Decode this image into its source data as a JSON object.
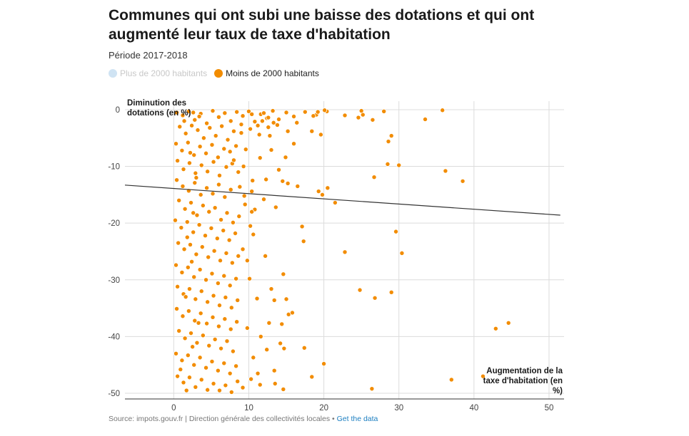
{
  "title": "Communes qui ont subi une baisse des dotations et qui ont augmenté leur taux de taxe d'habitation",
  "subtitle": "Période 2017-2018",
  "legend": [
    {
      "label": "Plus de 2000 habitants",
      "color": "#cfe3f3",
      "active": false
    },
    {
      "label": "Moins de 2000 habitants",
      "color": "#f28c00",
      "active": true
    }
  ],
  "source": {
    "text": "Source: impots.gouv.fr | Direction générale des collectivités locales • ",
    "link_label": "Get the data"
  },
  "colors": {
    "point": "#f28c00",
    "point_stroke": "#ffffff",
    "trend": "#333333",
    "grid": "#dcdcdc"
  },
  "chart_data": {
    "type": "scatter",
    "ylabel": "Diminution des dotations (en %)",
    "xlabel": "Augmentation de la taxe d'habitation (en %)",
    "xlim": [
      -6.5,
      52
    ],
    "ylim": [
      -51,
      1.5
    ],
    "xticks": [
      0,
      10,
      20,
      30,
      40,
      50
    ],
    "yticks": [
      0,
      -10,
      -20,
      -30,
      -40,
      -50
    ],
    "grid": true,
    "legend_position": "top-left",
    "trendline": [
      [
        -6.5,
        -13.3
      ],
      [
        51.5,
        -18.6
      ]
    ],
    "series": [
      {
        "name": "Moins de 2000 habitants",
        "points": [
          [
            0.4,
            -0.5
          ],
          [
            1.2,
            -1.0
          ],
          [
            2.0,
            -0.3
          ],
          [
            2.8,
            -1.8
          ],
          [
            3.6,
            -0.7
          ],
          [
            4.4,
            -2.4
          ],
          [
            5.2,
            -0.2
          ],
          [
            6.0,
            -1.3
          ],
          [
            6.8,
            -0.6
          ],
          [
            7.6,
            -2.0
          ],
          [
            8.4,
            -0.4
          ],
          [
            9.2,
            -1.1
          ],
          [
            10.0,
            -0.3
          ],
          [
            10.8,
            -2.1
          ],
          [
            11.6,
            -0.8
          ],
          [
            12.4,
            -1.5
          ],
          [
            13.2,
            -0.2
          ],
          [
            14.0,
            -1.7
          ],
          [
            15.0,
            -0.5
          ],
          [
            16.0,
            -1.2
          ],
          [
            17.5,
            -0.4
          ],
          [
            19.0,
            -0.9
          ],
          [
            20.4,
            -0.3
          ],
          [
            0.8,
            -3.0
          ],
          [
            1.6,
            -4.2
          ],
          [
            2.4,
            -2.8
          ],
          [
            3.2,
            -3.6
          ],
          [
            4.0,
            -5.0
          ],
          [
            4.8,
            -3.2
          ],
          [
            5.6,
            -4.6
          ],
          [
            6.4,
            -2.9
          ],
          [
            7.2,
            -5.3
          ],
          [
            8.0,
            -3.8
          ],
          [
            9.0,
            -4.1
          ],
          [
            10.2,
            -3.4
          ],
          [
            11.4,
            -4.4
          ],
          [
            12.6,
            -3.1
          ],
          [
            13.8,
            -2.7
          ],
          [
            15.2,
            -3.8
          ],
          [
            16.4,
            -2.3
          ],
          [
            0.3,
            -6.0
          ],
          [
            1.1,
            -7.2
          ],
          [
            1.9,
            -5.8
          ],
          [
            2.7,
            -8.0
          ],
          [
            3.5,
            -6.5
          ],
          [
            4.3,
            -7.7
          ],
          [
            5.1,
            -6.2
          ],
          [
            5.9,
            -8.4
          ],
          [
            6.7,
            -6.9
          ],
          [
            7.5,
            -7.4
          ],
          [
            8.3,
            -6.4
          ],
          [
            9.6,
            -7.0
          ],
          [
            11.5,
            -8.5
          ],
          [
            13.0,
            -7.1
          ],
          [
            0.5,
            -9.0
          ],
          [
            1.3,
            -10.5
          ],
          [
            2.1,
            -9.4
          ],
          [
            2.9,
            -11.2
          ],
          [
            3.7,
            -9.8
          ],
          [
            4.5,
            -10.9
          ],
          [
            5.3,
            -9.2
          ],
          [
            6.1,
            -11.6
          ],
          [
            7.0,
            -10.1
          ],
          [
            7.8,
            -9.5
          ],
          [
            8.6,
            -11.0
          ],
          [
            10.5,
            -12.5
          ],
          [
            12.3,
            -12.3
          ],
          [
            14.5,
            -12.6
          ],
          [
            15.2,
            -13.0
          ],
          [
            0.4,
            -12.4
          ],
          [
            1.2,
            -13.5
          ],
          [
            2.0,
            -14.3
          ],
          [
            2.8,
            -12.9
          ],
          [
            3.6,
            -15.0
          ],
          [
            4.4,
            -13.8
          ],
          [
            5.2,
            -14.8
          ],
          [
            6.0,
            -13.2
          ],
          [
            6.8,
            -15.4
          ],
          [
            7.6,
            -14.1
          ],
          [
            8.8,
            -13.6
          ],
          [
            10.4,
            -14.4
          ],
          [
            12.0,
            -15.8
          ],
          [
            13.6,
            -17.2
          ],
          [
            0.7,
            -16.0
          ],
          [
            1.5,
            -17.5
          ],
          [
            2.3,
            -16.4
          ],
          [
            3.1,
            -18.6
          ],
          [
            3.9,
            -16.9
          ],
          [
            4.7,
            -18.0
          ],
          [
            5.5,
            -17.3
          ],
          [
            6.3,
            -19.4
          ],
          [
            7.1,
            -18.2
          ],
          [
            7.9,
            -19.9
          ],
          [
            8.7,
            -18.8
          ],
          [
            9.5,
            -16.7
          ],
          [
            10.8,
            -17.6
          ],
          [
            0.2,
            -19.5
          ],
          [
            1.0,
            -20.8
          ],
          [
            1.8,
            -19.8
          ],
          [
            2.6,
            -21.6
          ],
          [
            3.4,
            -20.3
          ],
          [
            4.2,
            -22.2
          ],
          [
            5.0,
            -20.9
          ],
          [
            5.8,
            -22.7
          ],
          [
            6.6,
            -21.3
          ],
          [
            7.4,
            -23.0
          ],
          [
            8.2,
            -21.8
          ],
          [
            10.2,
            -20.5
          ],
          [
            10.6,
            -22.0
          ],
          [
            0.6,
            -23.5
          ],
          [
            1.4,
            -24.6
          ],
          [
            2.2,
            -23.8
          ],
          [
            3.0,
            -25.5
          ],
          [
            3.8,
            -24.2
          ],
          [
            4.6,
            -26.0
          ],
          [
            5.4,
            -24.9
          ],
          [
            6.2,
            -26.6
          ],
          [
            7.0,
            -25.3
          ],
          [
            7.8,
            -27.0
          ],
          [
            8.6,
            -25.8
          ],
          [
            9.8,
            -26.6
          ],
          [
            12.2,
            -25.8
          ],
          [
            0.3,
            -27.4
          ],
          [
            1.1,
            -28.7
          ],
          [
            1.9,
            -27.8
          ],
          [
            2.7,
            -29.5
          ],
          [
            3.5,
            -28.2
          ],
          [
            4.3,
            -30.0
          ],
          [
            5.1,
            -28.9
          ],
          [
            5.9,
            -30.6
          ],
          [
            6.7,
            -29.3
          ],
          [
            7.5,
            -31.0
          ],
          [
            8.3,
            -29.8
          ],
          [
            0.5,
            -31.2
          ],
          [
            1.3,
            -32.5
          ],
          [
            2.1,
            -31.6
          ],
          [
            2.9,
            -33.4
          ],
          [
            3.7,
            -32.0
          ],
          [
            4.5,
            -33.9
          ],
          [
            5.3,
            -32.8
          ],
          [
            6.1,
            -34.5
          ],
          [
            6.9,
            -33.1
          ],
          [
            7.7,
            -34.9
          ],
          [
            8.5,
            -33.6
          ],
          [
            0.4,
            -35.1
          ],
          [
            1.2,
            -36.4
          ],
          [
            2.0,
            -35.5
          ],
          [
            2.8,
            -37.2
          ],
          [
            3.6,
            -35.9
          ],
          [
            4.4,
            -37.7
          ],
          [
            5.2,
            -36.6
          ],
          [
            6.0,
            -38.2
          ],
          [
            6.8,
            -36.9
          ],
          [
            7.6,
            -38.7
          ],
          [
            8.4,
            -37.4
          ],
          [
            0.7,
            -39.0
          ],
          [
            1.5,
            -40.3
          ],
          [
            2.3,
            -39.4
          ],
          [
            3.1,
            -41.1
          ],
          [
            3.9,
            -39.8
          ],
          [
            4.7,
            -41.6
          ],
          [
            5.5,
            -40.5
          ],
          [
            6.3,
            -42.1
          ],
          [
            7.1,
            -40.8
          ],
          [
            7.9,
            -42.6
          ],
          [
            0.3,
            -43.0
          ],
          [
            1.1,
            -44.2
          ],
          [
            1.9,
            -43.3
          ],
          [
            2.7,
            -45.0
          ],
          [
            3.5,
            -43.7
          ],
          [
            4.3,
            -45.5
          ],
          [
            5.1,
            -44.4
          ],
          [
            5.9,
            -46.0
          ],
          [
            6.7,
            -44.7
          ],
          [
            7.5,
            -46.5
          ],
          [
            8.3,
            -45.2
          ],
          [
            0.5,
            -47.0
          ],
          [
            1.3,
            -48.1
          ],
          [
            2.1,
            -47.2
          ],
          [
            2.9,
            -48.9
          ],
          [
            3.7,
            -47.6
          ],
          [
            4.5,
            -49.4
          ],
          [
            5.3,
            -48.3
          ],
          [
            6.1,
            -49.5
          ],
          [
            6.9,
            -48.6
          ],
          [
            7.7,
            -49.8
          ],
          [
            8.5,
            -47.9
          ],
          [
            1.7,
            -49.5
          ],
          [
            0.9,
            -45.8
          ],
          [
            2.5,
            -41.8
          ],
          [
            3.3,
            -37.6
          ],
          [
            1.6,
            -33.0
          ],
          [
            2.4,
            -26.8
          ],
          [
            1.8,
            -22.5
          ],
          [
            2.6,
            -18.2
          ],
          [
            3.0,
            -12.0
          ],
          [
            2.2,
            -7.6
          ],
          [
            1.4,
            -2.0
          ],
          [
            2.6,
            -0.5
          ],
          [
            3.4,
            -1.2
          ],
          [
            14.0,
            -10.6
          ],
          [
            16.5,
            -13.5
          ],
          [
            14.9,
            -8.4
          ],
          [
            16.0,
            -6.0
          ],
          [
            18.4,
            -3.8
          ],
          [
            19.6,
            -4.4
          ],
          [
            22.8,
            -1.0
          ],
          [
            24.6,
            -1.4
          ],
          [
            25.2,
            -0.9
          ],
          [
            26.5,
            -1.8
          ],
          [
            25.0,
            -0.2
          ],
          [
            28.0,
            -0.3
          ],
          [
            33.5,
            -1.7
          ],
          [
            35.8,
            -0.1
          ],
          [
            28.6,
            -5.6
          ],
          [
            29.0,
            -4.6
          ],
          [
            28.5,
            -9.6
          ],
          [
            30.0,
            -9.8
          ],
          [
            26.7,
            -11.9
          ],
          [
            36.2,
            -10.8
          ],
          [
            38.5,
            -12.6
          ],
          [
            19.3,
            -14.4
          ],
          [
            20.5,
            -13.8
          ],
          [
            21.5,
            -16.4
          ],
          [
            19.8,
            -15.0
          ],
          [
            17.1,
            -20.6
          ],
          [
            17.3,
            -23.2
          ],
          [
            22.8,
            -25.1
          ],
          [
            29.6,
            -21.5
          ],
          [
            30.4,
            -25.3
          ],
          [
            14.6,
            -29.0
          ],
          [
            13.0,
            -31.6
          ],
          [
            13.4,
            -33.6
          ],
          [
            15.0,
            -33.4
          ],
          [
            15.3,
            -36.1
          ],
          [
            15.8,
            -35.8
          ],
          [
            11.1,
            -33.3
          ],
          [
            12.7,
            -37.6
          ],
          [
            14.4,
            -37.8
          ],
          [
            11.6,
            -40.0
          ],
          [
            14.2,
            -41.2
          ],
          [
            14.7,
            -42.1
          ],
          [
            17.4,
            -42.0
          ],
          [
            12.4,
            -42.3
          ],
          [
            11.2,
            -46.5
          ],
          [
            13.4,
            -46.0
          ],
          [
            11.5,
            -48.5
          ],
          [
            13.5,
            -48.3
          ],
          [
            14.6,
            -49.3
          ],
          [
            18.4,
            -47.1
          ],
          [
            20.0,
            -44.8
          ],
          [
            24.8,
            -31.8
          ],
          [
            26.8,
            -33.2
          ],
          [
            29.0,
            -32.2
          ],
          [
            26.4,
            -49.2
          ],
          [
            37.0,
            -47.6
          ],
          [
            41.2,
            -47.0
          ],
          [
            42.9,
            -38.6
          ],
          [
            44.6,
            -37.6
          ],
          [
            10.3,
            -47.5
          ],
          [
            9.2,
            -49.0
          ],
          [
            10.6,
            -43.7
          ],
          [
            9.8,
            -38.5
          ],
          [
            10.1,
            -29.8
          ],
          [
            9.2,
            -24.6
          ],
          [
            10.4,
            -18.0
          ],
          [
            9.4,
            -15.2
          ],
          [
            12.8,
            -4.6
          ],
          [
            11.2,
            -2.8
          ],
          [
            19.2,
            -0.4
          ],
          [
            20.1,
            -0.1
          ],
          [
            12.0,
            -0.6
          ],
          [
            12.6,
            -1.4
          ],
          [
            13.3,
            -2.3
          ],
          [
            9.0,
            -2.6
          ],
          [
            10.4,
            -0.8
          ],
          [
            11.8,
            -2.0
          ],
          [
            18.6,
            -1.1
          ],
          [
            8.0,
            -8.9
          ],
          [
            9.3,
            -10.0
          ]
        ]
      }
    ]
  }
}
